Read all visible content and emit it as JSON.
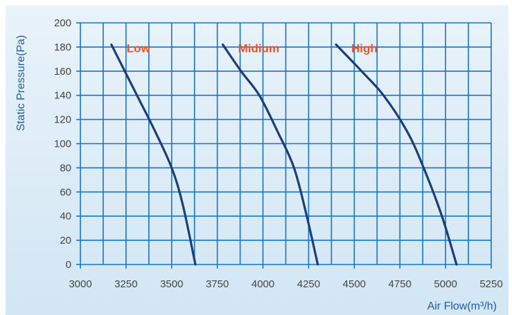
{
  "chart_data": {
    "type": "line",
    "title": "",
    "xlabel": "Air Flow(m³/h)",
    "ylabel": "Static Pressure(Pa)",
    "xlim": [
      3000,
      5250
    ],
    "ylim": [
      0,
      200
    ],
    "xticks": [
      "3000",
      "3250",
      "3500",
      "3750",
      "4000",
      "4250",
      "4500",
      "4750",
      "5000",
      "5250"
    ],
    "yticks": [
      "0",
      "20",
      "40",
      "60",
      "80",
      "100",
      "120",
      "140",
      "160",
      "180",
      "200"
    ],
    "grid": true,
    "series": [
      {
        "name": "Low",
        "x": [
          3170,
          3310,
          3410,
          3500,
          3560,
          3630
        ],
        "y": [
          182,
          140,
          110,
          80,
          50,
          0
        ]
      },
      {
        "name": "Midium",
        "x": [
          3780,
          3880,
          3980,
          4080,
          4170,
          4240,
          4300
        ],
        "y": [
          182,
          160,
          140,
          110,
          80,
          40,
          0
        ]
      },
      {
        "name": "High",
        "x": [
          4400,
          4540,
          4660,
          4790,
          4880,
          4980,
          5060
        ],
        "y": [
          182,
          160,
          140,
          110,
          80,
          40,
          0
        ]
      }
    ],
    "colors": {
      "background": "#dcecf7",
      "grid": "#1473c4",
      "curve": "#1a3e78",
      "series_label": "#f0502a",
      "tick_label": "#444444",
      "axis_label": "#1f5d9c"
    }
  }
}
